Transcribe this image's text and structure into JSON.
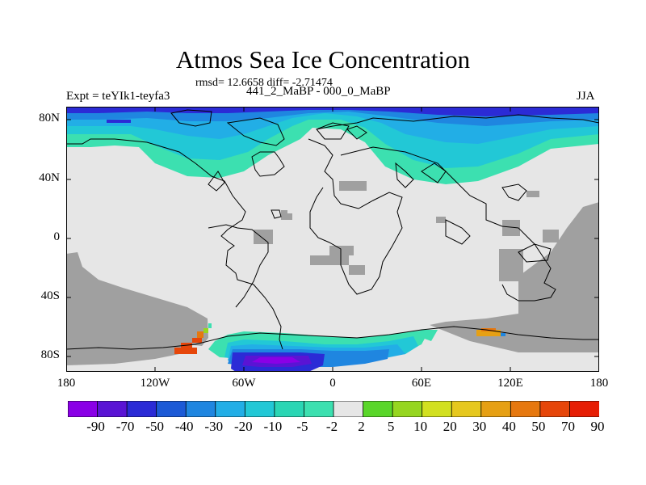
{
  "title": "Atmos Sea Ice Concentration",
  "stats": "rmsd= 12.6658 diff= -2.71474",
  "subtitle": "441_2_MaBP - 000_0_MaBP",
  "experiment": "Expt = teYIk1-teyfa3",
  "season": "JJA",
  "y_ticks": [
    "80N",
    "40N",
    "0",
    "40S",
    "80S"
  ],
  "x_ticks": [
    "180",
    "120W",
    "60W",
    "0",
    "60E",
    "120E",
    "180"
  ],
  "colorbar": {
    "labels": [
      "-90",
      "-70",
      "-50",
      "-40",
      "-30",
      "-20",
      "-10",
      "-5",
      "-2",
      "2",
      "5",
      "10",
      "20",
      "30",
      "40",
      "50",
      "70",
      "90"
    ],
    "colors": [
      "#8a00e6",
      "#5a14d4",
      "#2b2bd6",
      "#1c5ad6",
      "#1f86e0",
      "#22aee6",
      "#22c8d6",
      "#2ad6b4",
      "#3ce0b0",
      "#e6e6e6",
      "#5ad62a",
      "#96d620",
      "#d2e020",
      "#e6c81e",
      "#e6a014",
      "#e6780f",
      "#e6460a",
      "#e61e05"
    ]
  },
  "map_colors": {
    "land": "#e6e6e6",
    "masked_ocean": "#a0a0a0",
    "coast": "#000000",
    "ice_strong_loss": "#2b2bd6",
    "ice_loss": "#1f86e0",
    "ice_moderate_loss": "#22c8d6",
    "ice_small_loss": "#3ce0b0",
    "ice_deep_loss": "#5a14d4",
    "ice_gain": "#e6460a",
    "ice_gain_moderate": "#e6a014"
  }
}
